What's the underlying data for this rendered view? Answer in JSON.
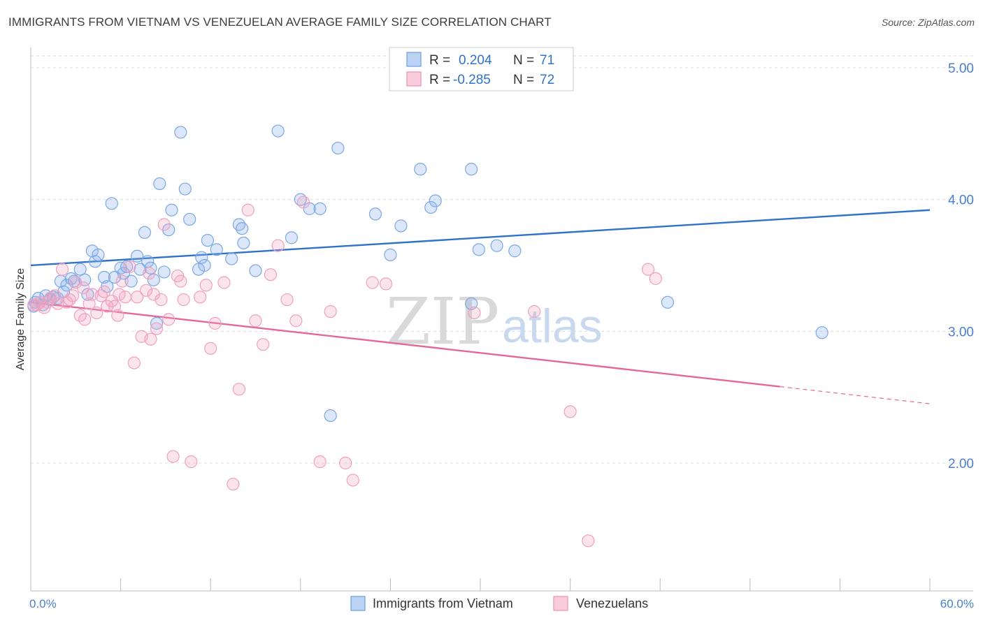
{
  "title": "IMMIGRANTS FROM VIETNAM VS VENEZUELAN AVERAGE FAMILY SIZE CORRELATION CHART",
  "source": "Source: ZipAtlas.com",
  "watermark": {
    "zip": "ZIP",
    "atlas": "atlas"
  },
  "colors": {
    "blue": "#6c9ee0",
    "blue_line": "#2f72c9",
    "pink": "#ee8fb2",
    "pink_line": "#e2689a",
    "tick": "#4a7ed4"
  },
  "legend": {
    "rows": [
      {
        "r_label": "R =",
        "r_value": "0.204",
        "n_label": "N =",
        "n_value": "71"
      },
      {
        "r_label": "R =",
        "r_value": "-0.285",
        "n_label": "N =",
        "n_value": "72"
      }
    ]
  },
  "chart_data": {
    "type": "scatter",
    "title": "IMMIGRANTS FROM VIETNAM VS VENEZUELAN AVERAGE FAMILY SIZE CORRELATION CHART",
    "xlabel": "",
    "ylabel": "Average Family Size",
    "xlim": [
      0,
      60
    ],
    "ylim": [
      1.03,
      5.09
    ],
    "x_tick_labels": [
      "0.0%",
      "60.0%"
    ],
    "y_ticks": [
      2.0,
      3.0,
      4.0,
      5.0
    ],
    "y_tick_labels": [
      "2.00",
      "3.00",
      "4.00",
      "5.00"
    ],
    "grid": true,
    "legend_position": "top-center",
    "series": [
      {
        "name": "Immigrants from Vietnam",
        "color": "#6c9ee0",
        "r": 0.204,
        "n": 71,
        "trend": {
          "x": [
            0,
            60
          ],
          "y": [
            3.5,
            3.92
          ]
        },
        "points": [
          [
            0.3,
            3.22
          ],
          [
            0.5,
            3.25
          ],
          [
            0.8,
            3.2
          ],
          [
            1.0,
            3.27
          ],
          [
            1.3,
            3.24
          ],
          [
            1.5,
            3.26
          ],
          [
            1.8,
            3.25
          ],
          [
            2.0,
            3.38
          ],
          [
            2.2,
            3.3
          ],
          [
            2.4,
            3.35
          ],
          [
            2.7,
            3.4
          ],
          [
            2.9,
            3.38
          ],
          [
            3.3,
            3.47
          ],
          [
            3.6,
            3.39
          ],
          [
            3.8,
            3.28
          ],
          [
            4.1,
            3.61
          ],
          [
            4.3,
            3.53
          ],
          [
            4.5,
            3.58
          ],
          [
            4.9,
            3.41
          ],
          [
            5.1,
            3.34
          ],
          [
            5.4,
            3.97
          ],
          [
            5.6,
            3.41
          ],
          [
            6.0,
            3.48
          ],
          [
            6.2,
            3.44
          ],
          [
            6.4,
            3.49
          ],
          [
            6.7,
            3.38
          ],
          [
            7.1,
            3.57
          ],
          [
            7.3,
            3.47
          ],
          [
            7.6,
            3.75
          ],
          [
            7.8,
            3.53
          ],
          [
            8.0,
            3.48
          ],
          [
            8.2,
            3.39
          ],
          [
            8.4,
            3.06
          ],
          [
            8.6,
            4.12
          ],
          [
            8.9,
            3.45
          ],
          [
            9.2,
            3.77
          ],
          [
            9.4,
            3.92
          ],
          [
            10.0,
            4.51
          ],
          [
            10.3,
            4.08
          ],
          [
            10.6,
            3.85
          ],
          [
            11.2,
            3.47
          ],
          [
            11.4,
            3.56
          ],
          [
            11.6,
            3.5
          ],
          [
            11.8,
            3.69
          ],
          [
            12.4,
            3.62
          ],
          [
            13.4,
            3.55
          ],
          [
            13.9,
            3.81
          ],
          [
            14.1,
            3.78
          ],
          [
            14.2,
            3.67
          ],
          [
            15.0,
            3.46
          ],
          [
            16.5,
            4.52
          ],
          [
            17.4,
            3.71
          ],
          [
            18.0,
            4.0
          ],
          [
            18.6,
            3.93
          ],
          [
            19.3,
            3.93
          ],
          [
            20.0,
            2.36
          ],
          [
            20.5,
            4.39
          ],
          [
            23.0,
            3.89
          ],
          [
            24.0,
            3.58
          ],
          [
            24.7,
            3.8
          ],
          [
            26.0,
            4.23
          ],
          [
            26.7,
            3.94
          ],
          [
            27.0,
            3.99
          ],
          [
            29.4,
            3.21
          ],
          [
            29.4,
            4.23
          ],
          [
            29.9,
            3.62
          ],
          [
            31.1,
            3.65
          ],
          [
            32.3,
            3.61
          ],
          [
            42.5,
            3.22
          ],
          [
            52.8,
            2.99
          ],
          [
            0.2,
            3.19
          ]
        ]
      },
      {
        "name": "Venezuelans",
        "color": "#ee8fb2",
        "r": -0.285,
        "n": 72,
        "trend": {
          "x": [
            0,
            50
          ],
          "y": [
            3.22,
            2.58
          ]
        },
        "trend_dashed": {
          "x": [
            50,
            60
          ],
          "y": [
            2.58,
            2.45
          ]
        },
        "points": [
          [
            0.4,
            3.2
          ],
          [
            0.6,
            3.22
          ],
          [
            0.9,
            3.18
          ],
          [
            1.1,
            3.22
          ],
          [
            1.3,
            3.25
          ],
          [
            1.6,
            3.27
          ],
          [
            1.8,
            3.21
          ],
          [
            2.1,
            3.47
          ],
          [
            2.4,
            3.22
          ],
          [
            2.6,
            3.24
          ],
          [
            2.8,
            3.27
          ],
          [
            3.0,
            3.37
          ],
          [
            3.3,
            3.12
          ],
          [
            3.6,
            3.09
          ],
          [
            3.9,
            3.21
          ],
          [
            4.1,
            3.28
          ],
          [
            4.4,
            3.14
          ],
          [
            4.7,
            3.27
          ],
          [
            4.9,
            3.3
          ],
          [
            5.1,
            3.19
          ],
          [
            5.4,
            3.23
          ],
          [
            5.6,
            3.19
          ],
          [
            5.8,
            3.12
          ],
          [
            6.1,
            3.38
          ],
          [
            6.3,
            3.26
          ],
          [
            6.6,
            3.49
          ],
          [
            6.9,
            2.76
          ],
          [
            7.1,
            3.26
          ],
          [
            7.4,
            2.96
          ],
          [
            7.7,
            3.31
          ],
          [
            8.0,
            2.94
          ],
          [
            8.2,
            3.28
          ],
          [
            8.4,
            3.02
          ],
          [
            8.7,
            3.24
          ],
          [
            8.9,
            3.81
          ],
          [
            9.2,
            3.09
          ],
          [
            9.5,
            2.05
          ],
          [
            10.0,
            3.38
          ],
          [
            10.2,
            3.24
          ],
          [
            10.7,
            2.01
          ],
          [
            11.3,
            3.26
          ],
          [
            11.7,
            3.35
          ],
          [
            12.0,
            2.87
          ],
          [
            12.3,
            3.06
          ],
          [
            12.9,
            3.37
          ],
          [
            13.5,
            1.84
          ],
          [
            13.9,
            2.56
          ],
          [
            14.5,
            3.92
          ],
          [
            15.0,
            3.08
          ],
          [
            15.5,
            2.9
          ],
          [
            16.0,
            3.43
          ],
          [
            16.5,
            3.65
          ],
          [
            17.1,
            3.24
          ],
          [
            17.7,
            3.08
          ],
          [
            18.2,
            3.98
          ],
          [
            19.3,
            2.01
          ],
          [
            20.0,
            3.15
          ],
          [
            21.0,
            2.0
          ],
          [
            21.5,
            1.87
          ],
          [
            22.8,
            3.37
          ],
          [
            23.7,
            3.36
          ],
          [
            29.6,
            3.14
          ],
          [
            33.6,
            3.15
          ],
          [
            36.0,
            2.39
          ],
          [
            41.2,
            3.47
          ],
          [
            41.7,
            3.4
          ],
          [
            37.2,
            1.41
          ],
          [
            0.2,
            3.2
          ],
          [
            9.8,
            3.42
          ],
          [
            3.5,
            3.33
          ],
          [
            5.9,
            3.28
          ],
          [
            7.9,
            3.44
          ]
        ]
      }
    ]
  },
  "bottom_legend": [
    {
      "label": "Immigrants from Vietnam"
    },
    {
      "label": "Venezuelans"
    }
  ]
}
